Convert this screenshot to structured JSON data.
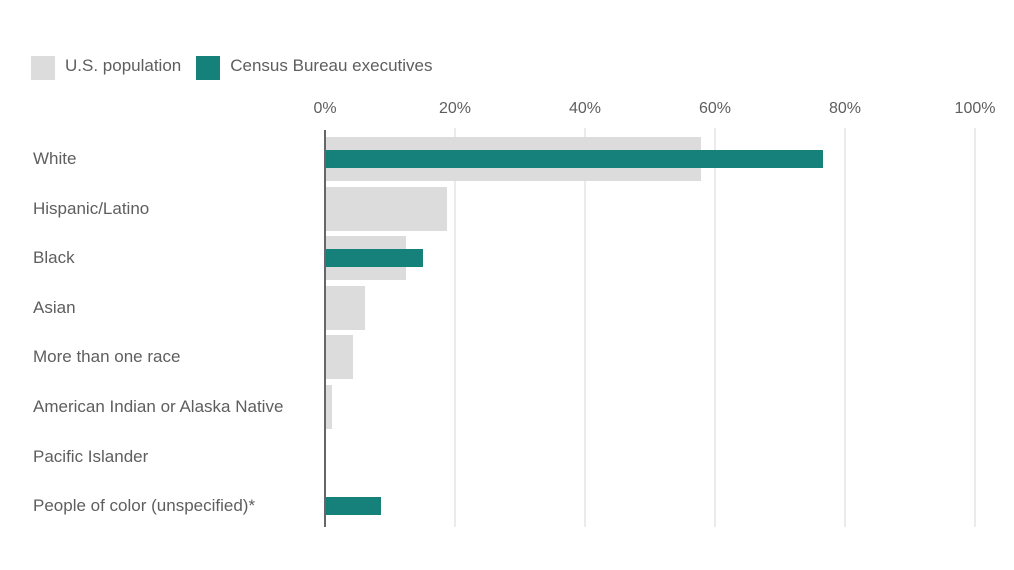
{
  "legend": [
    {
      "label": "U.S. population",
      "color": "#dcdcdc"
    },
    {
      "label": "Census Bureau executives",
      "color": "#16807b"
    }
  ],
  "axis": {
    "ticks": [
      "0%",
      "20%",
      "40%",
      "60%",
      "80%",
      "100%"
    ]
  },
  "rows": [
    {
      "label": "White"
    },
    {
      "label": "Hispanic/Latino"
    },
    {
      "label": "Black"
    },
    {
      "label": "Asian"
    },
    {
      "label": "More than one race"
    },
    {
      "label": "American Indian or Alaska Native"
    },
    {
      "label": "Pacific Islander"
    },
    {
      "label": "People of color (unspecified)*"
    }
  ],
  "chart_data": {
    "type": "bar",
    "orientation": "horizontal",
    "title": "",
    "xlabel": "",
    "ylabel": "",
    "xlim": [
      0,
      100
    ],
    "x_ticks": [
      "0%",
      "20%",
      "40%",
      "60%",
      "80%",
      "100%"
    ],
    "grid": true,
    "legend_position": "top-left",
    "categories": [
      "White",
      "Hispanic/Latino",
      "Black",
      "Asian",
      "More than one race",
      "American Indian or Alaska Native",
      "Pacific Islander",
      "People of color (unspecified)*"
    ],
    "series": [
      {
        "name": "U.S. population",
        "color": "#dcdcdc",
        "values": [
          57.8,
          18.7,
          12.4,
          6.1,
          4.3,
          1.0,
          0.2,
          0
        ]
      },
      {
        "name": "Census Bureau executives",
        "color": "#16807b",
        "values": [
          76.6,
          0,
          15.1,
          0,
          0,
          0,
          0,
          8.6
        ]
      }
    ]
  }
}
